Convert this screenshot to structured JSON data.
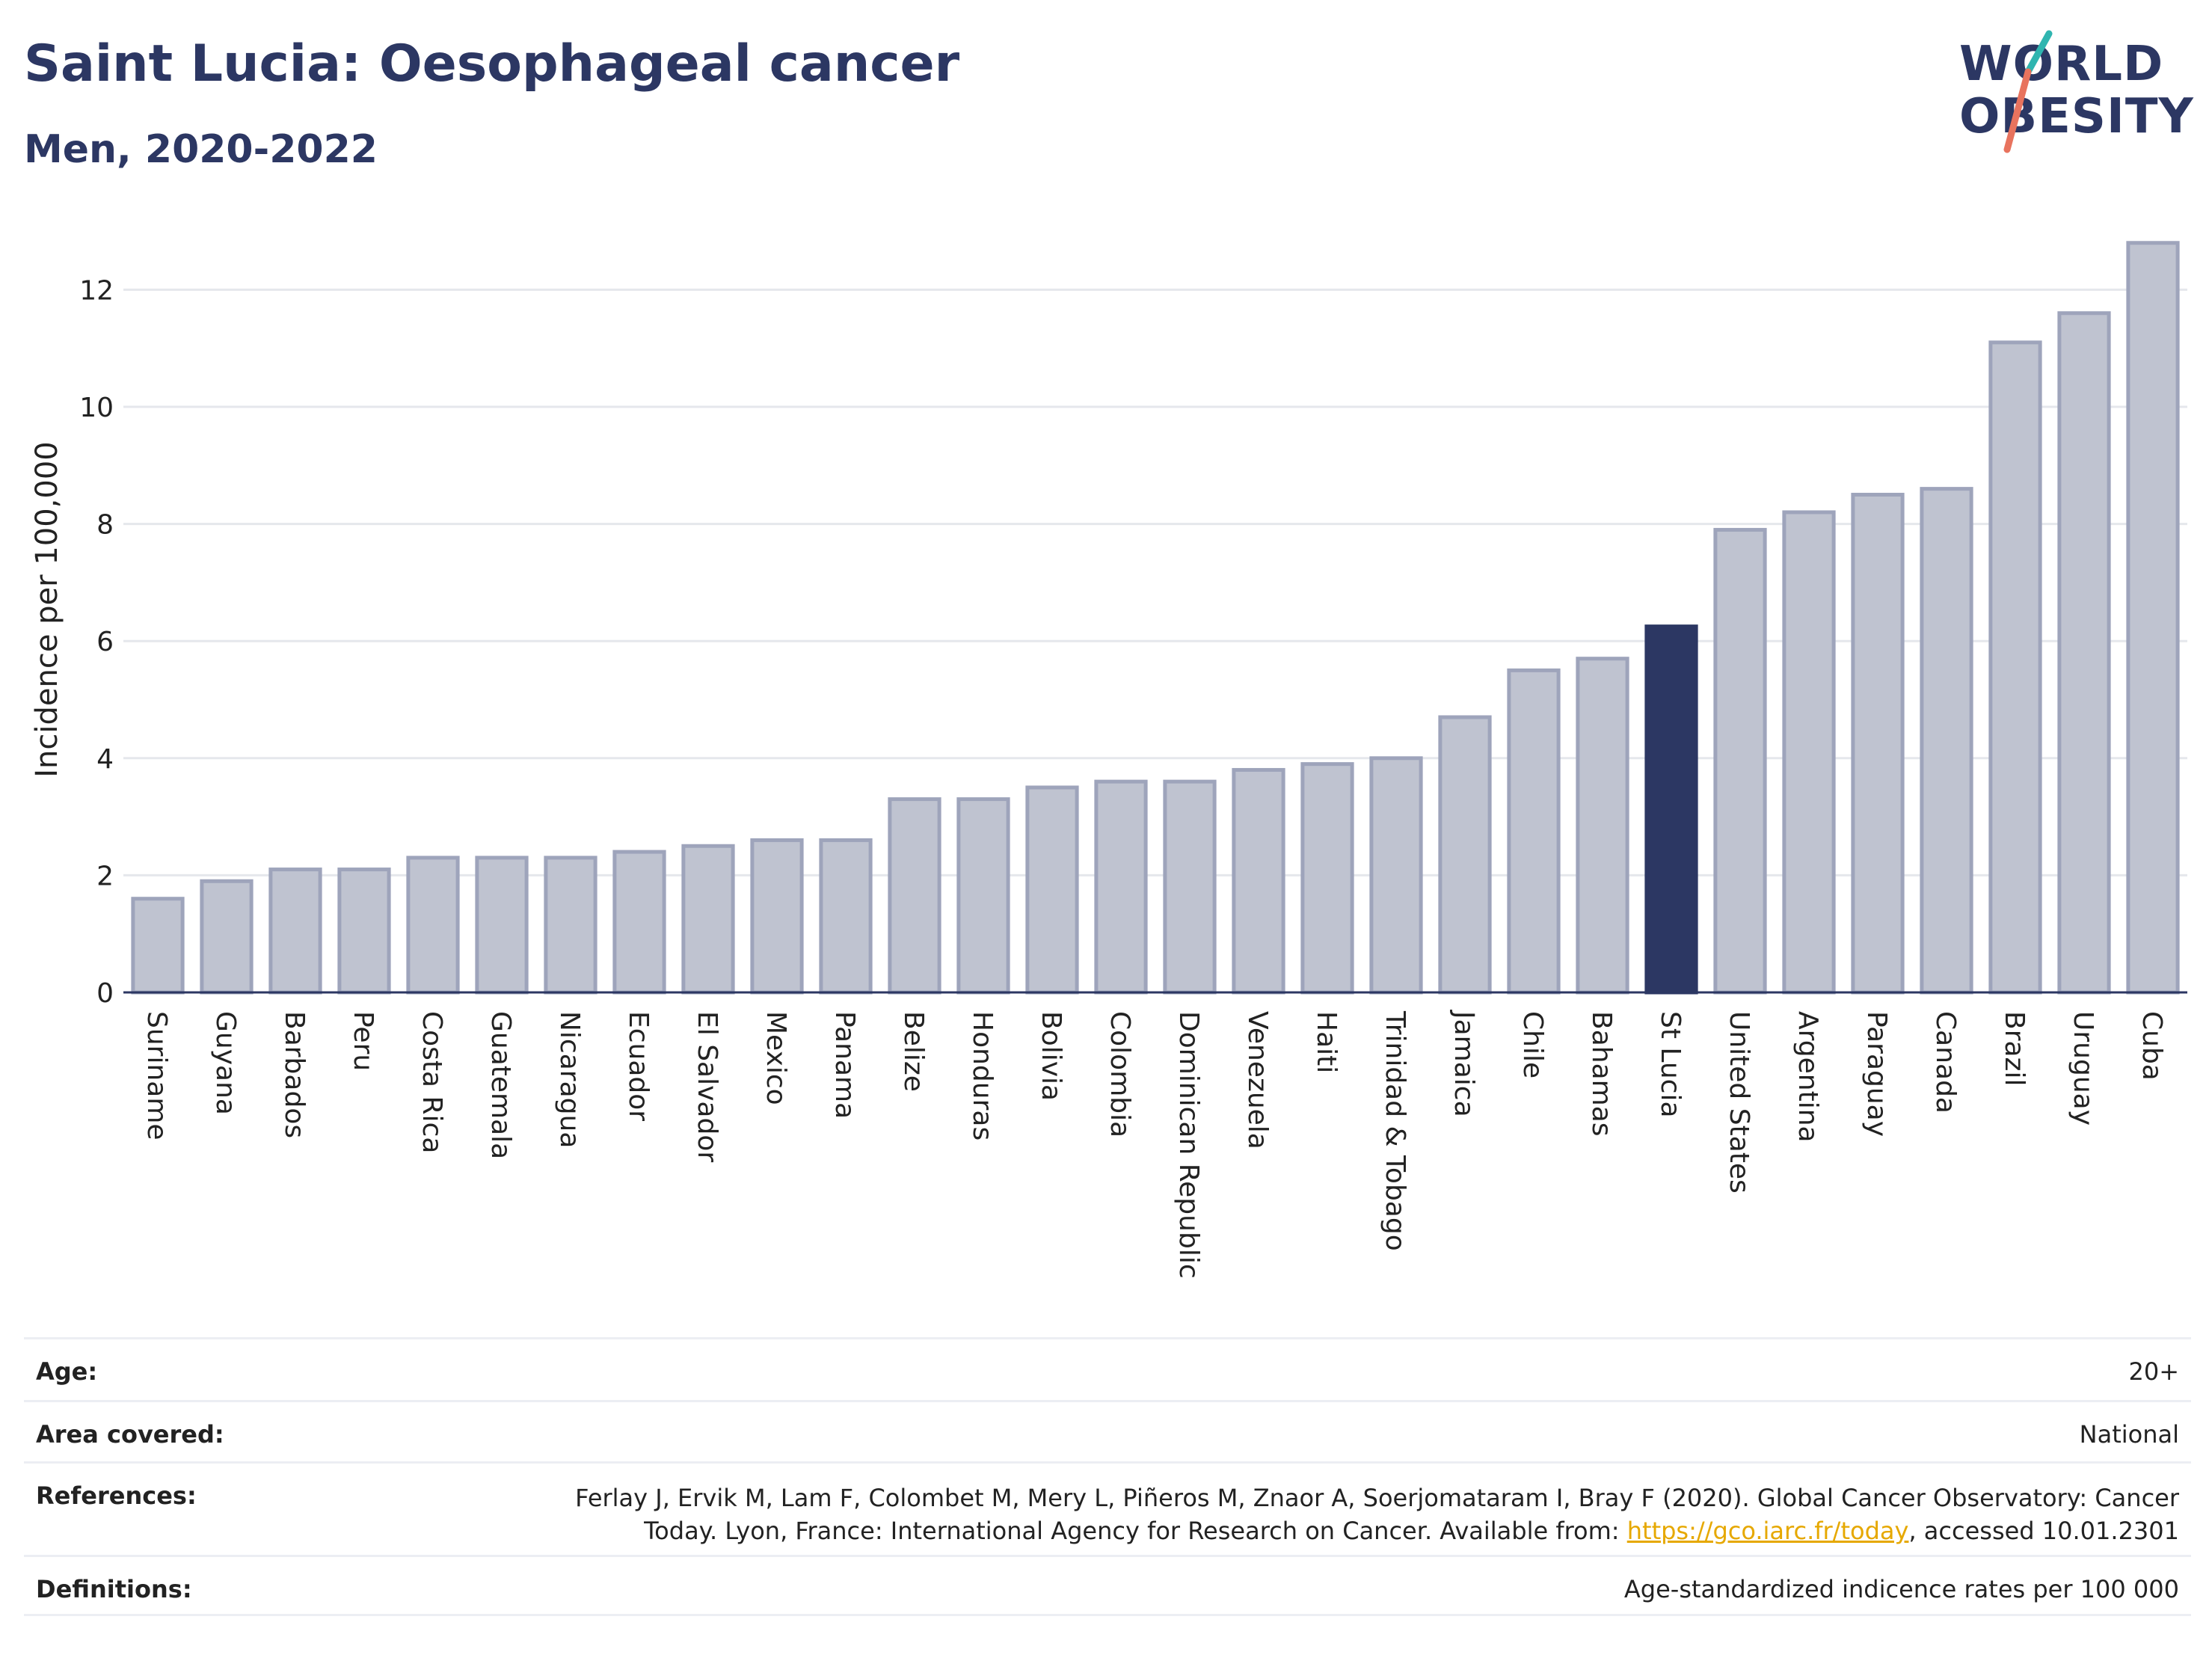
{
  "header": {
    "title": "Saint Lucia: Oesophageal cancer",
    "subtitle": "Men, 2020-2022"
  },
  "logo": {
    "line1": "WORLD",
    "line2": "OBESITY",
    "colors": {
      "text": "#2c3763",
      "slash_teal": "#2fb5b0",
      "slash_coral": "#e8735e"
    }
  },
  "colors": {
    "bar_default": "#bfc3d0",
    "bar_border": "#9ea4bb",
    "bar_highlight": "#2c3763",
    "grid": "#e5e7ec",
    "axis": "#2c3763"
  },
  "chart_data": {
    "type": "bar",
    "title": "Saint Lucia: Oesophageal cancer",
    "subtitle": "Men, 2020-2022",
    "xlabel": "",
    "ylabel": "Incidence per 100,000",
    "ylim": [
      0,
      13
    ],
    "yticks": [
      0,
      2,
      4,
      6,
      8,
      10,
      12
    ],
    "grid": true,
    "highlight": "St Lucia",
    "categories": [
      "Suriname",
      "Guyana",
      "Barbados",
      "Peru",
      "Costa Rica",
      "Guatemala",
      "Nicaragua",
      "Ecuador",
      "El Salvador",
      "Mexico",
      "Panama",
      "Belize",
      "Honduras",
      "Bolivia",
      "Colombia",
      "Dominican Republic",
      "Venezuela",
      "Haiti",
      "Trinidad & Tobago",
      "Jamaica",
      "Chile",
      "Bahamas",
      "St Lucia",
      "United States",
      "Argentina",
      "Paraguay",
      "Canada",
      "Brazil",
      "Uruguay",
      "Cuba"
    ],
    "values": [
      1.6,
      1.9,
      2.1,
      2.1,
      2.3,
      2.3,
      2.3,
      2.4,
      2.5,
      2.6,
      2.6,
      3.3,
      3.3,
      3.5,
      3.6,
      3.6,
      3.8,
      3.9,
      4.0,
      4.7,
      5.5,
      5.7,
      6.25,
      7.9,
      8.2,
      8.5,
      8.6,
      11.1,
      11.6,
      12.8
    ]
  },
  "info": {
    "age_label": "Age:",
    "age_value": "20+",
    "area_label": "Area covered:",
    "area_value": "National",
    "references_label": "References:",
    "references_line1": "Ferlay J, Ervik M, Lam F, Colombet M, Mery L, Piñeros M, Znaor A, Soerjomataram I, Bray F (2020). Global Cancer Observatory: Cancer",
    "references_line2_pre": "Today. Lyon, France: International Agency for Research on Cancer. Available from: ",
    "references_link": "https://gco.iarc.fr/today",
    "references_line2_post": ", accessed 10.01.2301",
    "definitions_label": "Definitions:",
    "definitions_value": "Age-standardized indicence rates per 100 000"
  }
}
